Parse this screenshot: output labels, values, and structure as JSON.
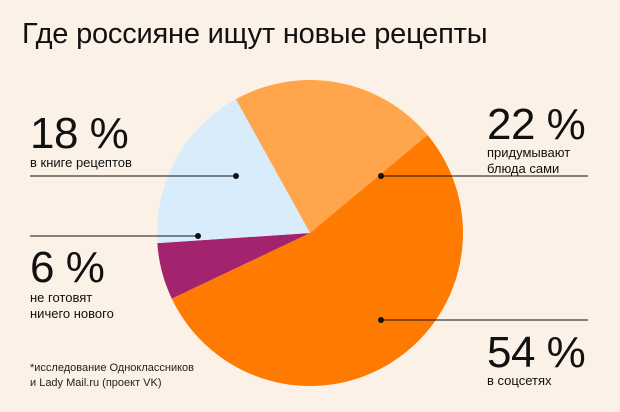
{
  "chart_data": {
    "type": "pie",
    "title": "Где россияне ищут новые рецепты",
    "slices": [
      {
        "value": 22,
        "label": "22 %",
        "description": "придумывают блюда сами",
        "desc1": "придумывают",
        "desc2": "блюда сами",
        "color": "#ffa64d"
      },
      {
        "value": 54,
        "label": "54 %",
        "description": "в соцсетях",
        "color": "#ff7a00"
      },
      {
        "value": 6,
        "label": "6 %",
        "description": "не готовят ничего нового",
        "desc1": "не готовят",
        "desc2": "ничего нового",
        "color": "#a3236e"
      },
      {
        "value": 18,
        "label": "18 %",
        "description": "в книге рецептов",
        "color": "#d9ecfb"
      }
    ],
    "footnote": {
      "line1": "*исследование Одноклассников",
      "line2": "и Lady Mail.ru (проект VK)"
    }
  }
}
